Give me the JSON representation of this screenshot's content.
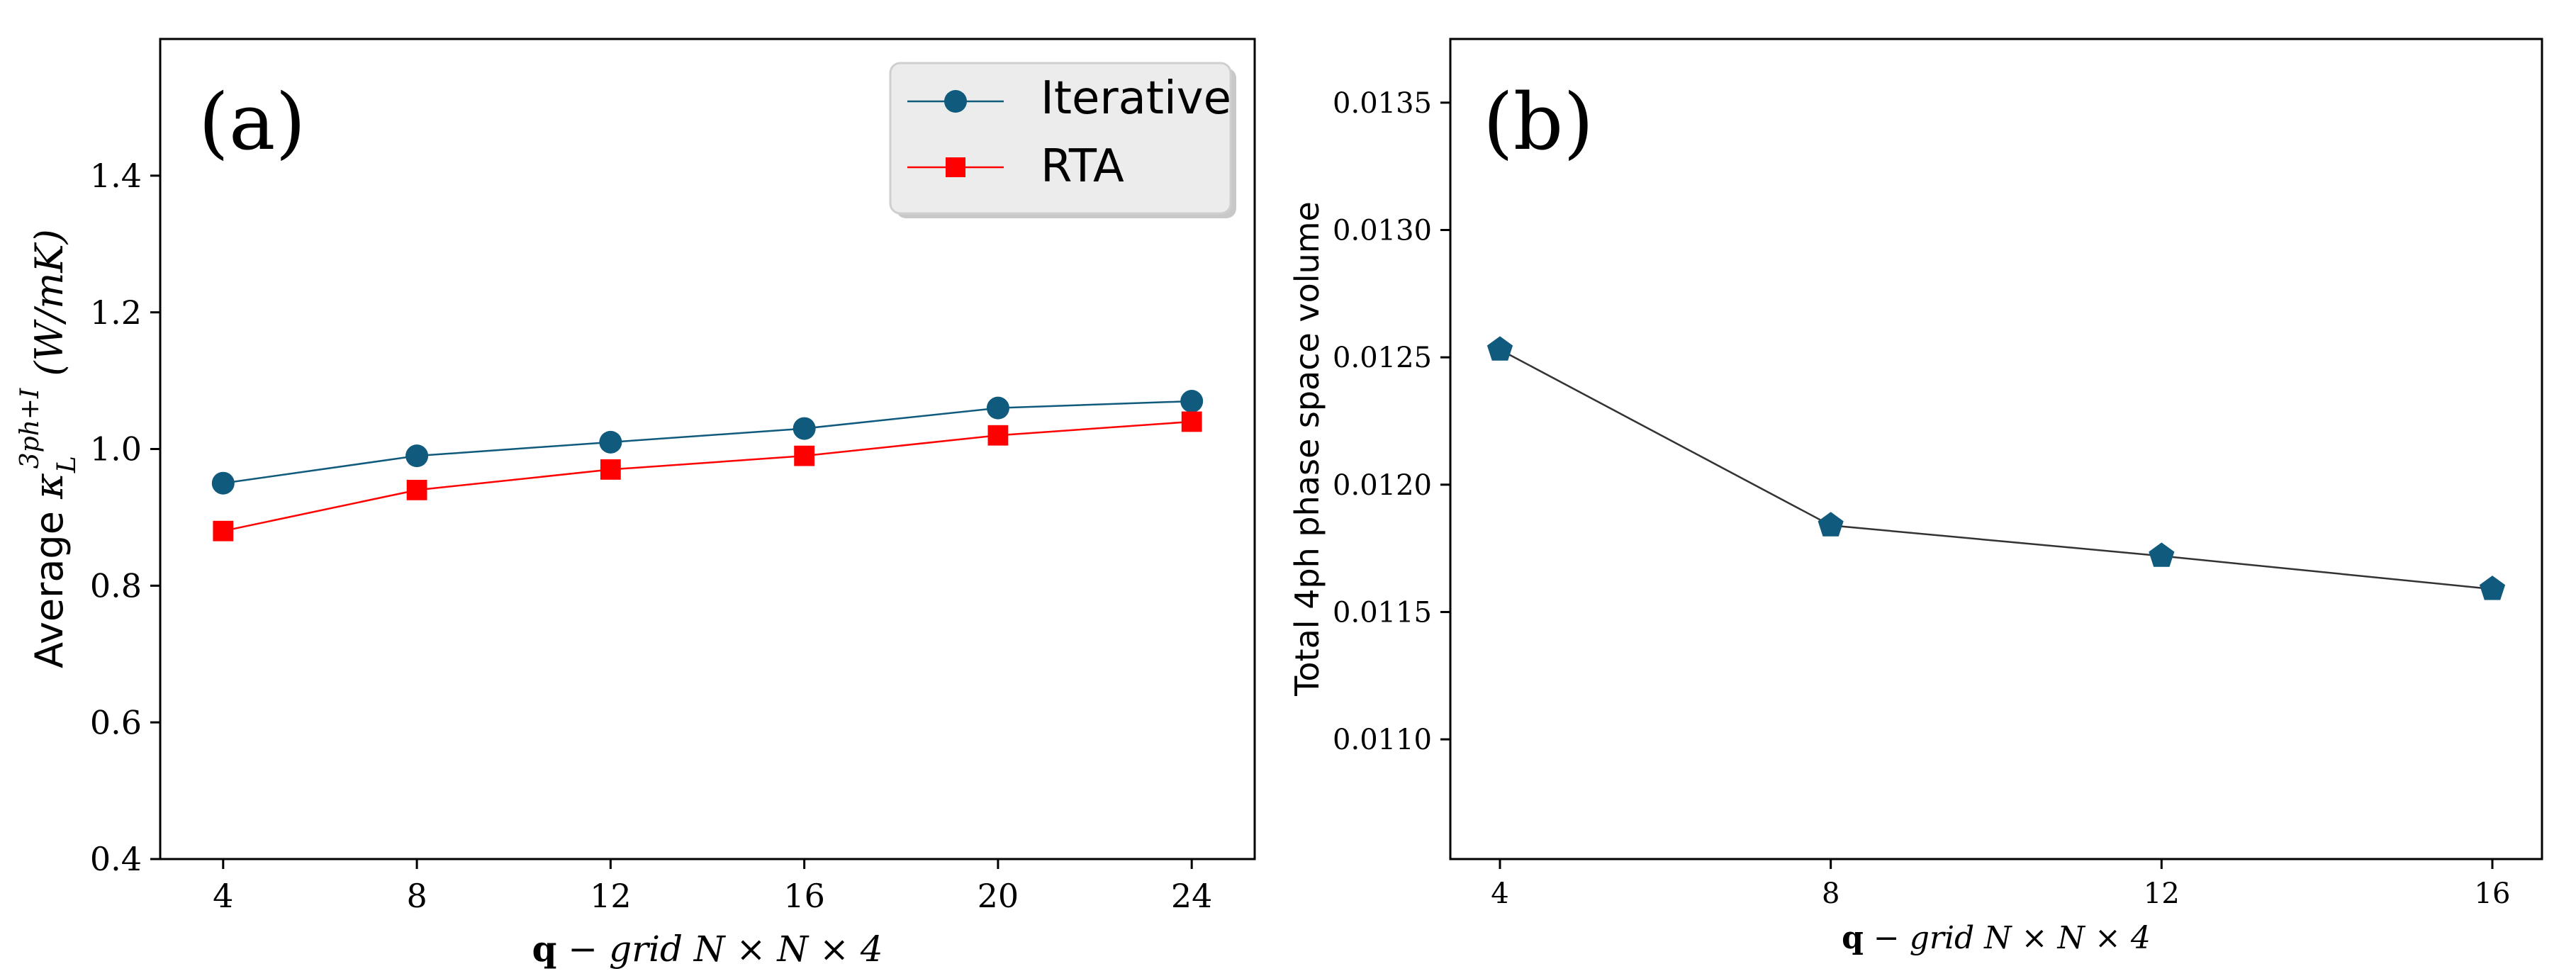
{
  "chart_data": [
    {
      "type": "line",
      "panel_label": "(a)",
      "x": [
        4,
        8,
        12,
        16,
        20,
        24
      ],
      "series": [
        {
          "name": "Iterative",
          "values": [
            0.95,
            0.99,
            1.01,
            1.03,
            1.06,
            1.07
          ],
          "color": "#0f5a7d",
          "marker": "circle"
        },
        {
          "name": "RTA",
          "values": [
            0.88,
            0.94,
            0.97,
            0.99,
            1.02,
            1.04
          ],
          "color": "#ff0000",
          "marker": "square"
        }
      ],
      "xlabel": "q − grid N × N × 4",
      "ylabel": "Average κL3ph+I (W/mK)",
      "ylabel_parts": {
        "prefix": "Average ",
        "kappa": "κ",
        "sub": "L",
        "sup": "3ph+I",
        "unit": " (W/mK)"
      },
      "xlabel_parts": {
        "bold": "q",
        "rest": " − grid N × N × 4"
      },
      "xticks": [
        "4",
        "8",
        "12",
        "16",
        "20",
        "24"
      ],
      "yticks": [
        "0.4",
        "0.6",
        "0.8",
        "1.0",
        "1.2",
        "1.4"
      ],
      "xlim": [
        2.7,
        25.3
      ],
      "ylim": [
        0.4,
        1.6
      ],
      "legend": "top-right",
      "grid": false
    },
    {
      "type": "line",
      "panel_label": "(b)",
      "x": [
        4,
        8,
        12,
        16
      ],
      "series": [
        {
          "values": [
            0.01253,
            0.01184,
            0.01172,
            0.01159
          ],
          "color": "#0f5a7d",
          "line_color": "#333333",
          "marker": "pentagon"
        }
      ],
      "xlabel": "q − grid N × N × 4",
      "xlabel_parts": {
        "bold": "q",
        "rest": " − grid N × N × 4"
      },
      "ylabel": "Total 4ph phase space volume",
      "xticks": [
        "4",
        "8",
        "12",
        "16"
      ],
      "yticks": [
        "0.0110",
        "0.0115",
        "0.0120",
        "0.0125",
        "0.0130",
        "0.0135"
      ],
      "xlim": [
        3.4,
        16.6
      ],
      "ylim": [
        0.01053,
        0.01375
      ],
      "grid": false
    }
  ]
}
